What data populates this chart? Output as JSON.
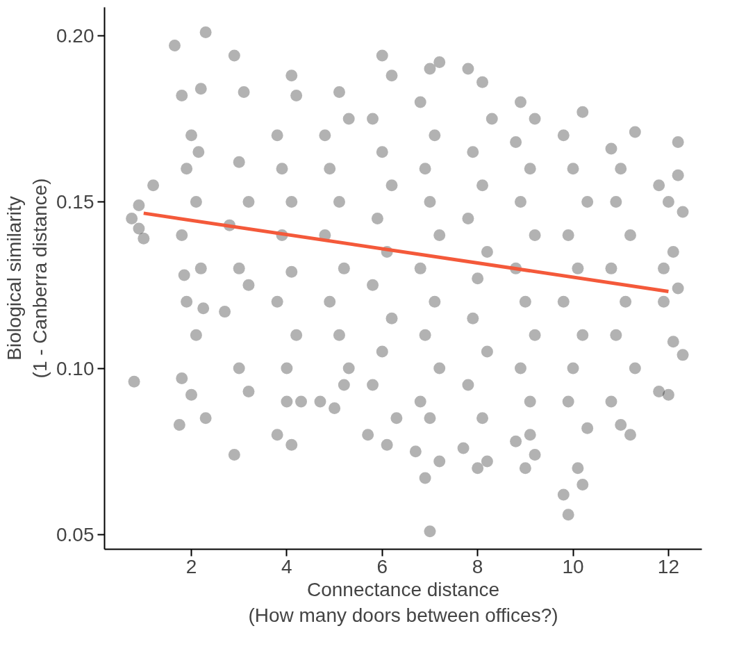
{
  "chart_data": {
    "type": "scatter",
    "xlabel": "Connectance distance\n(How many doors between offices?)",
    "ylabel": "Biological similarity\n(1 - Canberra distance)",
    "xlim": [
      0.18,
      12.7
    ],
    "ylim": [
      0.0456,
      0.2085
    ],
    "xticks": [
      2,
      4,
      6,
      8,
      10,
      12
    ],
    "yticks": [
      {
        "value": 0.05,
        "label": "0.05"
      },
      {
        "value": 0.1,
        "label": "0.10"
      },
      {
        "value": 0.15,
        "label": "0.15"
      },
      {
        "value": 0.2,
        "label": "0.20"
      }
    ],
    "grid": false,
    "series": [
      {
        "color": "#000000",
        "marker": "circle",
        "x": [
          0.75,
          0.8,
          0.9,
          1.0,
          1.2,
          0.9,
          1.65,
          2.3,
          1.8,
          2.2,
          2.0,
          1.9,
          2.1,
          1.8,
          2.2,
          1.9,
          2.1,
          1.8,
          1.75,
          2.3,
          2.0,
          2.15,
          1.85,
          2.25,
          2.9,
          3.0,
          3.2,
          2.9,
          3.1,
          3.0,
          3.2,
          2.7,
          3.0,
          3.2,
          2.8,
          3.8,
          4.1,
          4.0,
          3.8,
          4.2,
          4.1,
          3.9,
          4.1,
          3.9,
          4.1,
          3.8,
          4.2,
          4.0,
          4.3,
          4.7,
          5.0,
          5.2,
          4.8,
          5.1,
          5.3,
          4.9,
          5.1,
          4.8,
          5.2,
          4.9,
          5.1,
          5.3,
          5.7,
          6.1,
          6.3,
          6.0,
          6.2,
          5.8,
          6.0,
          6.2,
          5.9,
          6.1,
          5.8,
          6.2,
          6.0,
          5.8,
          7.0,
          6.9,
          7.2,
          6.7,
          7.0,
          7.2,
          6.8,
          7.1,
          6.9,
          7.0,
          7.2,
          6.8,
          7.1,
          6.9,
          7.2,
          6.8,
          7.0,
          8.0,
          8.2,
          7.7,
          7.8,
          8.1,
          8.3,
          7.9,
          8.1,
          7.8,
          8.2,
          8.0,
          7.9,
          8.2,
          7.8,
          8.1,
          9.0,
          9.2,
          8.8,
          9.1,
          8.9,
          9.2,
          8.8,
          9.1,
          8.9,
          9.2,
          8.8,
          9.0,
          9.2,
          8.9,
          9.1,
          9.9,
          9.8,
          10.2,
          10.1,
          10.2,
          9.8,
          10.0,
          10.3,
          9.9,
          10.1,
          9.8,
          10.2,
          10.0,
          9.9,
          10.3,
          10.8,
          11.3,
          11.0,
          10.9,
          11.2,
          10.8,
          11.1,
          10.9,
          11.3,
          10.8,
          11.2,
          11.0,
          11.8,
          12.2,
          12.0,
          12.3,
          11.9,
          12.1,
          12.2,
          11.9,
          12.1,
          12.3,
          11.8,
          12.0,
          12.2
        ],
        "values": [
          0.145,
          0.096,
          0.142,
          0.139,
          0.155,
          0.149,
          0.197,
          0.201,
          0.182,
          0.184,
          0.17,
          0.16,
          0.15,
          0.14,
          0.13,
          0.12,
          0.11,
          0.097,
          0.083,
          0.085,
          0.092,
          0.165,
          0.128,
          0.118,
          0.074,
          0.1,
          0.093,
          0.194,
          0.183,
          0.162,
          0.15,
          0.117,
          0.13,
          0.125,
          0.143,
          0.08,
          0.077,
          0.09,
          0.17,
          0.182,
          0.188,
          0.16,
          0.15,
          0.14,
          0.129,
          0.12,
          0.11,
          0.1,
          0.09,
          0.09,
          0.088,
          0.095,
          0.17,
          0.183,
          0.175,
          0.16,
          0.15,
          0.14,
          0.13,
          0.12,
          0.11,
          0.1,
          0.08,
          0.077,
          0.085,
          0.194,
          0.188,
          0.175,
          0.165,
          0.155,
          0.145,
          0.135,
          0.125,
          0.115,
          0.105,
          0.095,
          0.051,
          0.067,
          0.072,
          0.075,
          0.19,
          0.192,
          0.18,
          0.17,
          0.16,
          0.15,
          0.14,
          0.13,
          0.12,
          0.11,
          0.1,
          0.09,
          0.085,
          0.07,
          0.072,
          0.076,
          0.19,
          0.186,
          0.175,
          0.165,
          0.155,
          0.145,
          0.135,
          0.127,
          0.115,
          0.105,
          0.095,
          0.085,
          0.07,
          0.074,
          0.078,
          0.08,
          0.18,
          0.175,
          0.168,
          0.16,
          0.15,
          0.14,
          0.13,
          0.12,
          0.11,
          0.1,
          0.09,
          0.056,
          0.062,
          0.065,
          0.07,
          0.177,
          0.17,
          0.16,
          0.15,
          0.14,
          0.13,
          0.12,
          0.11,
          0.1,
          0.09,
          0.082,
          0.166,
          0.171,
          0.16,
          0.15,
          0.14,
          0.13,
          0.12,
          0.11,
          0.1,
          0.09,
          0.08,
          0.083,
          0.155,
          0.168,
          0.15,
          0.147,
          0.13,
          0.135,
          0.124,
          0.12,
          0.108,
          0.104,
          0.093,
          0.092,
          0.158
        ]
      },
      {
        "type": "line",
        "color": "#f4593a",
        "x": [
          1,
          12
        ],
        "values": [
          0.1466,
          0.1231
        ]
      }
    ]
  }
}
